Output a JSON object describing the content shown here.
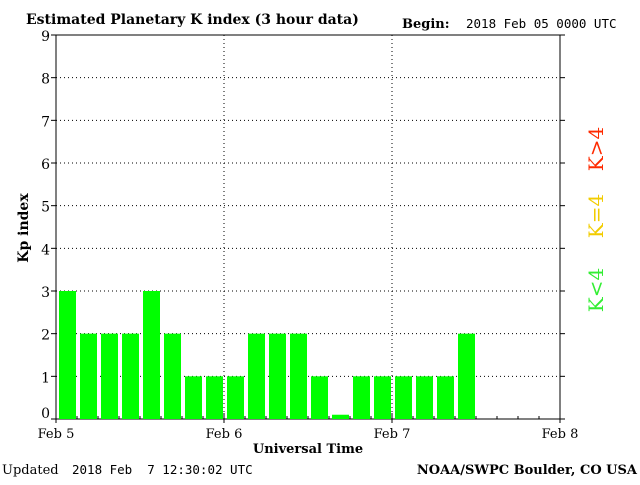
{
  "header": {
    "title": "Estimated Planetary K index (3 hour data)",
    "begin_label": "Begin:",
    "begin_value": "2018 Feb 05 0000 UTC"
  },
  "footer": {
    "updated_label": "Updated",
    "updated_value": "2018 Feb  7 12:30:02 UTC",
    "credit": "NOAA/SWPC Boulder, CO USA"
  },
  "legend": {
    "items": [
      {
        "label": "K<4",
        "color": "#33ee33"
      },
      {
        "label": "K=4",
        "color": "#f2cc00"
      },
      {
        "label": "K>4",
        "color": "#ff2a00"
      }
    ]
  },
  "chart_data": {
    "type": "bar",
    "title": "Estimated Planetary K index (3 hour data)",
    "xlabel": "Universal Time",
    "ylabel": "Kp index",
    "ylim": [
      0,
      9
    ],
    "yticks": [
      "0",
      "1",
      "2",
      "3",
      "4",
      "5",
      "6",
      "7",
      "8",
      "9"
    ],
    "xticks": [
      "Feb 5",
      "Feb 6",
      "Feb 7",
      "Feb 8"
    ],
    "bins_per_day": 8,
    "grid": true,
    "bar_color": "#00ff00",
    "values": [
      3,
      2,
      2,
      2,
      3,
      2,
      1,
      1,
      1,
      2,
      2,
      2,
      1,
      0.1,
      1,
      1,
      1,
      1,
      1,
      2
    ]
  }
}
